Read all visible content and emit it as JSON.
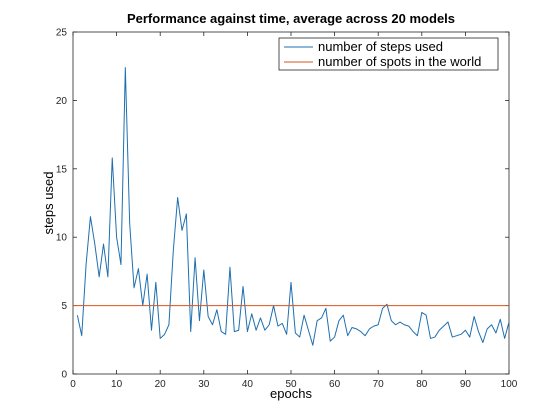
{
  "chart_data": {
    "type": "line",
    "title": "Performance against time, average across 20 models",
    "xlabel": "epochs",
    "ylabel": "steps used",
    "xlim": [
      0,
      100
    ],
    "ylim": [
      0,
      25
    ],
    "xticks": [
      0,
      10,
      20,
      30,
      40,
      50,
      60,
      70,
      80,
      90,
      100
    ],
    "yticks": [
      0,
      5,
      10,
      15,
      20,
      25
    ],
    "legend_location": "top-right",
    "series": [
      {
        "name": "number of steps used",
        "color": "#1f6fb0",
        "x": [
          1,
          2,
          3,
          4,
          5,
          6,
          7,
          8,
          9,
          10,
          11,
          12,
          13,
          14,
          15,
          16,
          17,
          18,
          19,
          20,
          21,
          22,
          23,
          24,
          25,
          26,
          27,
          28,
          29,
          30,
          31,
          32,
          33,
          34,
          35,
          36,
          37,
          38,
          39,
          40,
          41,
          42,
          43,
          44,
          45,
          46,
          47,
          48,
          49,
          50,
          51,
          52,
          53,
          54,
          55,
          56,
          57,
          58,
          59,
          60,
          61,
          62,
          63,
          64,
          65,
          66,
          67,
          68,
          69,
          70,
          71,
          72,
          73,
          74,
          75,
          76,
          77,
          78,
          79,
          80,
          81,
          82,
          83,
          84,
          85,
          86,
          87,
          88,
          89,
          90,
          91,
          92,
          93,
          94,
          95,
          96,
          97,
          98,
          99,
          100
        ],
        "values": [
          4.3,
          2.8,
          8.0,
          11.5,
          9.5,
          7.1,
          9.5,
          7.1,
          15.8,
          10.0,
          8.0,
          22.4,
          11.0,
          6.3,
          7.7,
          5.0,
          7.3,
          3.2,
          6.7,
          2.6,
          2.9,
          3.6,
          9.0,
          12.9,
          10.5,
          11.7,
          3.1,
          8.5,
          3.9,
          7.6,
          4.2,
          3.6,
          4.7,
          3.1,
          2.9,
          7.8,
          3.1,
          3.2,
          6.4,
          3.1,
          4.4,
          3.2,
          4.1,
          3.2,
          3.6,
          5.0,
          3.5,
          3.7,
          2.9,
          6.7,
          3.0,
          2.7,
          4.3,
          3.2,
          2.1,
          3.9,
          4.1,
          4.8,
          2.4,
          2.7,
          3.9,
          4.3,
          2.8,
          3.4,
          3.3,
          3.1,
          2.8,
          3.3,
          3.5,
          3.6,
          4.8,
          5.1,
          3.9,
          3.6,
          3.8,
          3.6,
          3.5,
          3.1,
          2.8,
          4.5,
          4.3,
          2.6,
          2.7,
          3.2,
          3.5,
          3.8,
          2.7,
          2.8,
          2.9,
          3.2,
          2.7,
          4.2,
          3.1,
          2.3,
          3.3,
          3.6,
          3.0,
          4.0,
          2.6,
          3.8
        ]
      },
      {
        "name": "number of spots in the world",
        "color": "#d9531e",
        "x": [
          0,
          100
        ],
        "values": [
          5,
          5
        ]
      }
    ]
  }
}
